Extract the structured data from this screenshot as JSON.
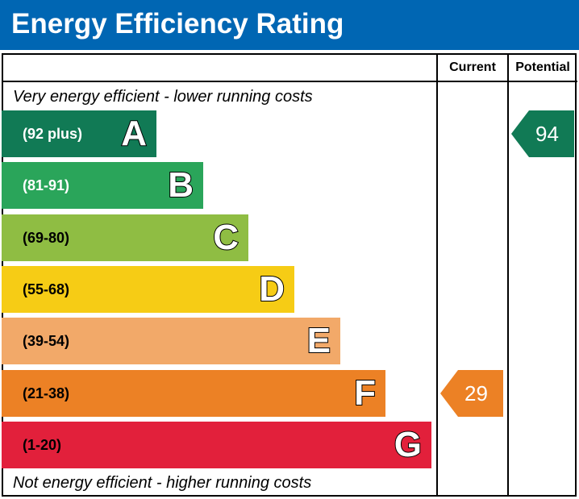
{
  "title": "Energy Efficiency Rating",
  "columns": {
    "current": "Current",
    "potential": "Potential"
  },
  "top_note": "Very energy efficient - lower running costs",
  "bottom_note": "Not energy efficient - higher running costs",
  "chart_data": {
    "type": "bar",
    "title": "Energy Efficiency Rating",
    "categories": [
      "A",
      "B",
      "C",
      "D",
      "E",
      "F",
      "G"
    ],
    "bands": [
      {
        "letter": "A",
        "range": "(92 plus)",
        "color": "#117a55",
        "range_text_color": "#ffffff"
      },
      {
        "letter": "B",
        "range": "(81-91)",
        "color": "#2aa55a",
        "range_text_color": "#ffffff"
      },
      {
        "letter": "C",
        "range": "(69-80)",
        "color": "#8fbd43",
        "range_text_color": "#000000"
      },
      {
        "letter": "D",
        "range": "(55-68)",
        "color": "#f6cc15",
        "range_text_color": "#000000"
      },
      {
        "letter": "E",
        "range": "(39-54)",
        "color": "#f2a969",
        "range_text_color": "#000000"
      },
      {
        "letter": "F",
        "range": "(21-38)",
        "color": "#ec8125",
        "range_text_color": "#000000"
      },
      {
        "letter": "G",
        "range": "(1-20)",
        "color": "#e2203b",
        "range_text_color": "#000000"
      }
    ],
    "current": {
      "value": 29,
      "band": "F",
      "color": "#ec8125"
    },
    "potential": {
      "value": 94,
      "band": "A",
      "color": "#117a55"
    }
  }
}
